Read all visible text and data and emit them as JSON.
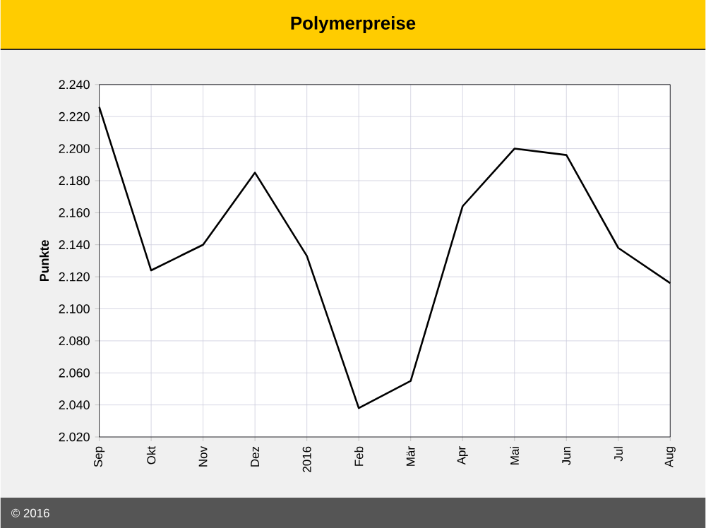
{
  "chart_data": {
    "type": "line",
    "title": "Polymerpreise",
    "ylabel": "Punkte",
    "annotations": [
      "© 2016"
    ],
    "categories": [
      "Sep",
      "Okt",
      "Nov",
      "Dez",
      "2016",
      "Feb",
      "Mär",
      "Apr",
      "Mai",
      "Jun",
      "Jul",
      "Aug"
    ],
    "series": [
      {
        "color": "#000000",
        "values": [
          2226,
          2124,
          2140,
          2185,
          2133,
          2038,
          2055,
          2164,
          2200,
          2196,
          2138,
          2116
        ]
      }
    ],
    "ylim": [
      2020,
      2240
    ],
    "yticks": [
      {
        "value": 2020,
        "label": "2.020"
      },
      {
        "value": 2040,
        "label": "2.040"
      },
      {
        "value": 2060,
        "label": "2.060"
      },
      {
        "value": 2080,
        "label": "2.080"
      },
      {
        "value": 2100,
        "label": "2.100"
      },
      {
        "value": 2120,
        "label": "2.120"
      },
      {
        "value": 2140,
        "label": "2.140"
      },
      {
        "value": 2160,
        "label": "2.160"
      },
      {
        "value": 2180,
        "label": "2.180"
      },
      {
        "value": 2200,
        "label": "2.200"
      },
      {
        "value": 2220,
        "label": "2.220"
      },
      {
        "value": 2240,
        "label": "2.240"
      }
    ],
    "grid": true,
    "marker": "none",
    "line_style": "solid"
  }
}
